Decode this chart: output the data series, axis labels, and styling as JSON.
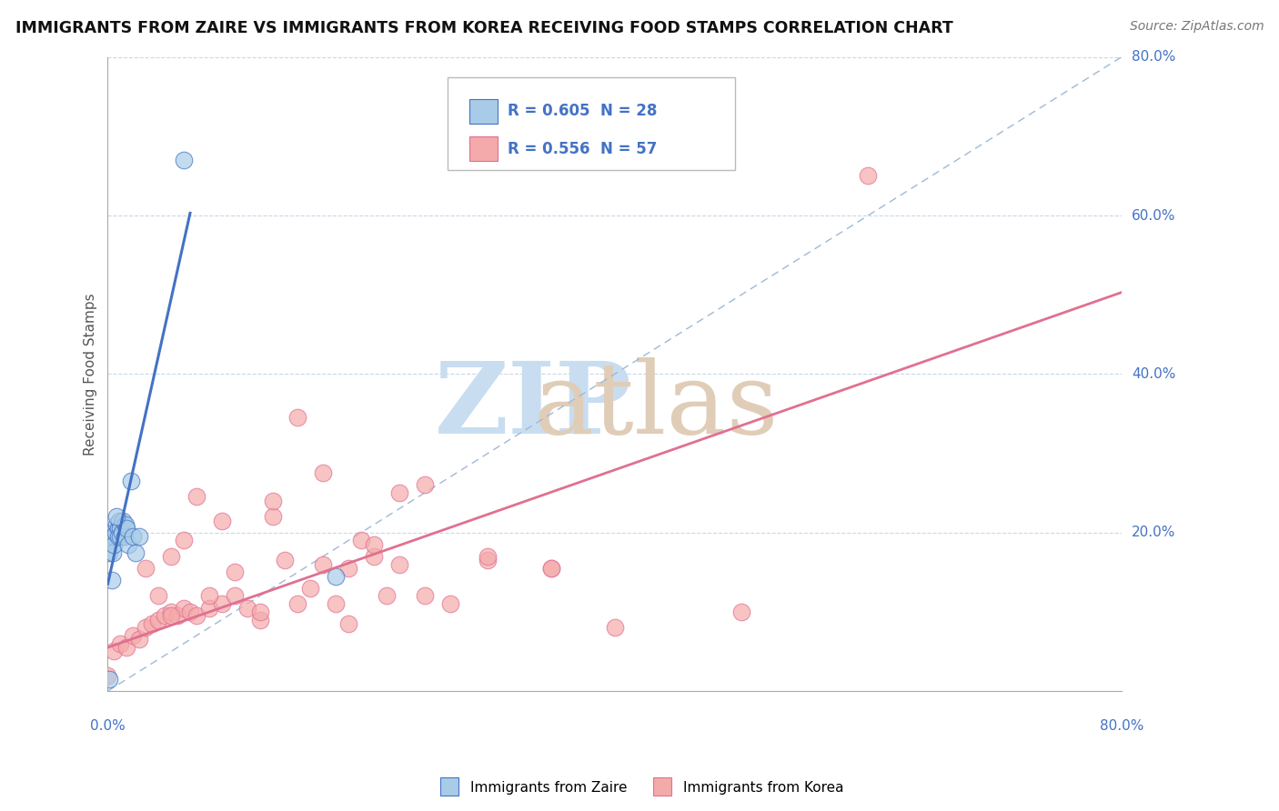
{
  "title": "IMMIGRANTS FROM ZAIRE VS IMMIGRANTS FROM KOREA RECEIVING FOOD STAMPS CORRELATION CHART",
  "source": "Source: ZipAtlas.com",
  "ylabel": "Receiving Food Stamps",
  "legend_zaire_R": "R = 0.605",
  "legend_zaire_N": "N = 28",
  "legend_korea_R": "R = 0.556",
  "legend_korea_N": "N = 57",
  "zaire_color": "#a8cce8",
  "korea_color": "#f4aaaa",
  "zaire_line_color": "#4472c4",
  "korea_line_color": "#e07090",
  "ref_line_color": "#a0b8d8",
  "background_color": "#ffffff",
  "grid_color": "#c8d8e8",
  "xlim": [
    0.0,
    0.8
  ],
  "ylim": [
    0.0,
    0.8
  ],
  "zaire_x": [
    0.001,
    0.002,
    0.003,
    0.004,
    0.005,
    0.005,
    0.006,
    0.007,
    0.008,
    0.008,
    0.009,
    0.01,
    0.01,
    0.011,
    0.012,
    0.013,
    0.014,
    0.015,
    0.016,
    0.018,
    0.02,
    0.022,
    0.025,
    0.06,
    0.18,
    0.001,
    0.003,
    0.007
  ],
  "zaire_y": [
    0.175,
    0.19,
    0.2,
    0.175,
    0.195,
    0.185,
    0.2,
    0.21,
    0.205,
    0.195,
    0.215,
    0.205,
    0.195,
    0.2,
    0.215,
    0.195,
    0.21,
    0.205,
    0.185,
    0.265,
    0.195,
    0.175,
    0.195,
    0.67,
    0.145,
    0.015,
    0.14,
    0.22
  ],
  "korea_x": [
    0.0,
    0.005,
    0.01,
    0.015,
    0.02,
    0.025,
    0.03,
    0.035,
    0.04,
    0.045,
    0.05,
    0.055,
    0.06,
    0.065,
    0.07,
    0.08,
    0.09,
    0.1,
    0.11,
    0.12,
    0.13,
    0.14,
    0.15,
    0.16,
    0.17,
    0.18,
    0.19,
    0.2,
    0.21,
    0.22,
    0.23,
    0.25,
    0.27,
    0.3,
    0.35,
    0.4,
    0.5,
    0.6,
    0.03,
    0.04,
    0.05,
    0.06,
    0.07,
    0.08,
    0.09,
    0.1,
    0.12,
    0.13,
    0.15,
    0.17,
    0.19,
    0.21,
    0.23,
    0.25,
    0.3,
    0.35,
    0.05
  ],
  "korea_y": [
    0.02,
    0.05,
    0.06,
    0.055,
    0.07,
    0.065,
    0.08,
    0.085,
    0.09,
    0.095,
    0.1,
    0.095,
    0.105,
    0.1,
    0.095,
    0.105,
    0.11,
    0.12,
    0.105,
    0.09,
    0.22,
    0.165,
    0.11,
    0.13,
    0.16,
    0.11,
    0.085,
    0.19,
    0.17,
    0.12,
    0.16,
    0.12,
    0.11,
    0.165,
    0.155,
    0.08,
    0.1,
    0.65,
    0.155,
    0.12,
    0.17,
    0.19,
    0.245,
    0.12,
    0.215,
    0.15,
    0.1,
    0.24,
    0.345,
    0.275,
    0.155,
    0.185,
    0.25,
    0.26,
    0.17,
    0.155,
    0.095
  ],
  "zaire_trend_x": [
    0.0,
    0.065
  ],
  "zaire_trend_y_intercept": 0.135,
  "zaire_trend_slope": 7.2,
  "korea_trend_x": [
    0.0,
    0.8
  ],
  "korea_trend_y_intercept": 0.055,
  "korea_trend_slope": 0.56
}
